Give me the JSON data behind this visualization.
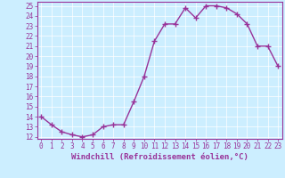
{
  "x": [
    0,
    1,
    2,
    3,
    4,
    5,
    6,
    7,
    8,
    9,
    10,
    11,
    12,
    13,
    14,
    15,
    16,
    17,
    18,
    19,
    20,
    21,
    22,
    23
  ],
  "y": [
    14.0,
    13.2,
    12.5,
    12.2,
    12.0,
    12.2,
    13.0,
    13.2,
    13.2,
    15.5,
    18.0,
    21.5,
    23.2,
    23.2,
    24.8,
    23.8,
    25.0,
    25.0,
    24.8,
    24.2,
    23.2,
    21.0,
    21.0,
    19.0
  ],
  "line_color": "#993399",
  "marker": "+",
  "marker_size": 4,
  "linewidth": 1.0,
  "xlabel": "Windchill (Refroidissement éolien,°C)",
  "ylim_min": 12,
  "ylim_max": 25,
  "xlim_min": 0,
  "xlim_max": 23,
  "yticks": [
    12,
    13,
    14,
    15,
    16,
    17,
    18,
    19,
    20,
    21,
    22,
    23,
    24,
    25
  ],
  "xticks": [
    0,
    1,
    2,
    3,
    4,
    5,
    6,
    7,
    8,
    9,
    10,
    11,
    12,
    13,
    14,
    15,
    16,
    17,
    18,
    19,
    20,
    21,
    22,
    23
  ],
  "bg_color": "#cceeff",
  "grid_color": "#ffffff",
  "line_border_color": "#993399",
  "tick_color": "#993399",
  "label_color": "#993399",
  "xlabel_fontsize": 6.5,
  "tick_fontsize": 5.5
}
